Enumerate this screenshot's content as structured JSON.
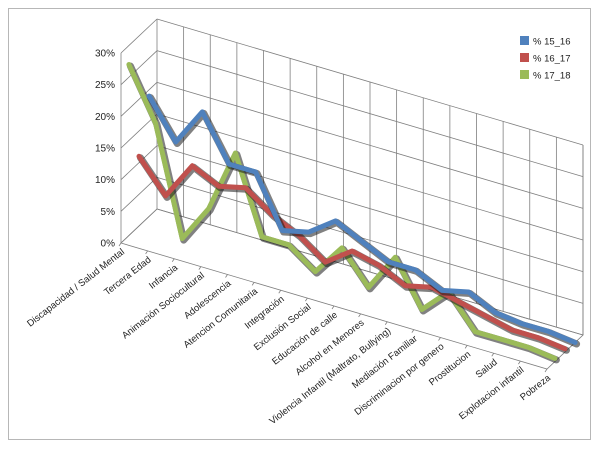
{
  "chart_data": {
    "type": "line",
    "categories": [
      "Discapacidad / Salud Mental",
      "Tercera Edad",
      "Infancia",
      "Animación Sociocultural",
      "Adolescencia",
      "Atencion Comunitaria",
      "Integración",
      "Exclusión Social",
      "Educación de calle",
      "Alcohol en Menores",
      "Violencia Infantil (Maltrato, Bullying)",
      "Mediación Familiar",
      "Discriminacion por genero",
      "Prostitucion",
      "Salud",
      "Explotacion infantil",
      "Pobreza"
    ],
    "series": [
      {
        "name": "% 15_16",
        "color": "#4f81bd",
        "values": [
          19,
          13,
          19,
          12,
          12,
          4,
          5,
          8,
          6,
          4,
          4,
          2,
          3,
          1,
          0.5,
          0.5,
          0
        ]
      },
      {
        "name": "% 16_17",
        "color": "#c0504d",
        "values": [
          11,
          6,
          12,
          10,
          11,
          8,
          6,
          3,
          6,
          5,
          3,
          4,
          3,
          2,
          1,
          1,
          0.5
        ]
      },
      {
        "name": "% 17_18",
        "color": "#9bbb59",
        "values": [
          27,
          19,
          2,
          8,
          18,
          6,
          6,
          3,
          8,
          3,
          9,
          2,
          6,
          1,
          1,
          1,
          0.5
        ]
      }
    ],
    "yticks": [
      "0%",
      "5%",
      "10%",
      "15%",
      "20%",
      "25%",
      "30%"
    ],
    "ylim": [
      0,
      30
    ],
    "grid": true,
    "legend": "top-right"
  }
}
